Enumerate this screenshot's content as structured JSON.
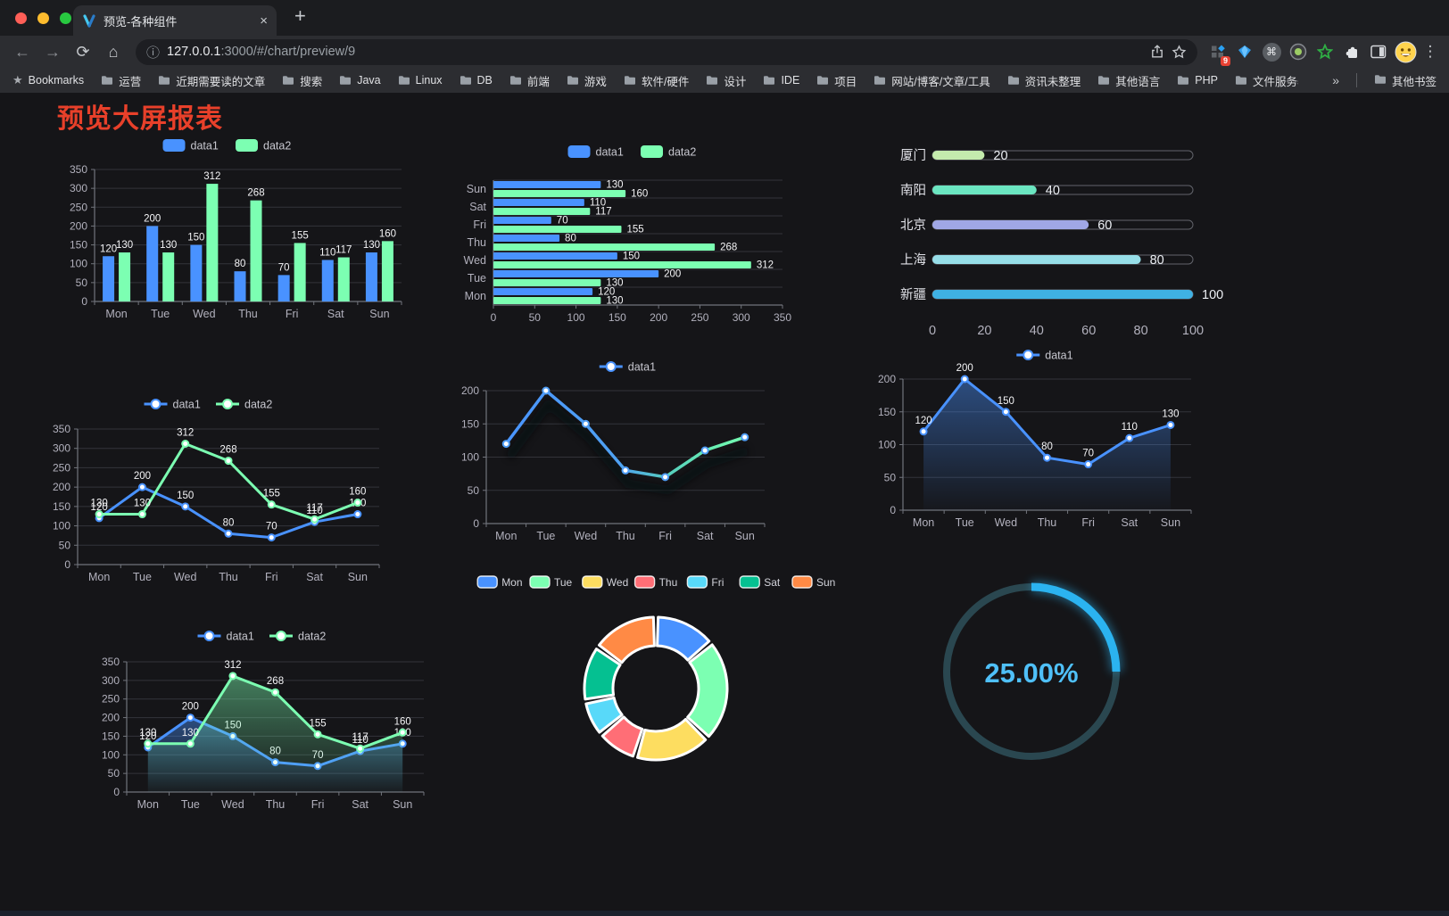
{
  "browser": {
    "traffic_lights": {
      "close": "#ff5f57",
      "minimize": "#febc2e",
      "zoom": "#28c840"
    },
    "tab": {
      "title": "预览-各种组件",
      "close_glyph": "×",
      "new_tab_glyph": "+"
    },
    "address": {
      "info_glyph": "ⓘ",
      "host": "127.0.0.1",
      "rest": ":3000/#/chart/preview/9"
    },
    "nav": {
      "back_glyph": "←",
      "forward_glyph": "→",
      "reload_glyph": "⟳",
      "home_glyph": "⌂"
    },
    "extension_badge": "9",
    "menu_glyph": "⋮",
    "command_glyph": "⌘",
    "bookmarks_bar": {
      "bookmarks_label": "Bookmarks",
      "star_glyph": "★",
      "folders": [
        "运营",
        "近期需要读的文章",
        "搜索",
        "Java",
        "Linux",
        "DB",
        "前端",
        "游戏",
        "软件/硬件",
        "设计",
        "IDE",
        "项目",
        "网站/博客/文章/工具",
        "资讯未整理",
        "其他语言",
        "PHP",
        "文件服务器"
      ],
      "overflow_glyph": "»",
      "other_bookmarks": "其他书签"
    }
  },
  "page": {
    "title": "预览大屏报表",
    "title_color": "#e8402a",
    "background": "#151518"
  },
  "theme": {
    "axis": "#71747c",
    "grid": "#33343a",
    "tick_text": "#b2b1bd",
    "value_label": "#f4f4f6",
    "legend_text": "#c8c8d0",
    "series_blue": "#4992ff",
    "series_green": "#7cffb2"
  },
  "chart_data": [
    {
      "id": "bar-vertical",
      "type": "bar",
      "legend": [
        "data1",
        "data2"
      ],
      "categories": [
        "Mon",
        "Tue",
        "Wed",
        "Thu",
        "Fri",
        "Sat",
        "Sun"
      ],
      "series": [
        {
          "name": "data1",
          "color": "#4992ff",
          "values": [
            120,
            200,
            150,
            80,
            70,
            110,
            130
          ]
        },
        {
          "name": "data2",
          "color": "#7cffb2",
          "values": [
            130,
            130,
            312,
            268,
            155,
            117,
            160
          ]
        }
      ],
      "ylim": [
        0,
        350
      ],
      "ytick_step": 50,
      "grid": true,
      "value_labels": true
    },
    {
      "id": "bar-horizontal",
      "type": "bar",
      "orientation": "horizontal",
      "legend": [
        "data1",
        "data2"
      ],
      "categories": [
        "Mon",
        "Tue",
        "Wed",
        "Thu",
        "Fri",
        "Sat",
        "Sun"
      ],
      "category_display_top_to_bottom": [
        "Sun",
        "Sat",
        "Fri",
        "Thu",
        "Wed",
        "Tue",
        "Mon"
      ],
      "series": [
        {
          "name": "data1",
          "color": "#4992ff",
          "values": [
            120,
            200,
            150,
            80,
            70,
            110,
            130
          ]
        },
        {
          "name": "data2",
          "color": "#7cffb2",
          "values": [
            130,
            130,
            312,
            268,
            155,
            117,
            160
          ]
        }
      ],
      "xlim": [
        0,
        350
      ],
      "xtick_step": 50,
      "value_labels": true
    },
    {
      "id": "progress-bars",
      "type": "bar",
      "orientation": "horizontal-progress",
      "xlim": [
        0,
        100
      ],
      "xticks": [
        0,
        20,
        40,
        60,
        80,
        100
      ],
      "items": [
        {
          "label": "厦门",
          "value": 20,
          "color": "#c4ebad"
        },
        {
          "label": "南阳",
          "value": 40,
          "color": "#6be6c1"
        },
        {
          "label": "北京",
          "value": 60,
          "color": "#a0a7e6"
        },
        {
          "label": "上海",
          "value": 80,
          "color": "#96dee8"
        },
        {
          "label": "新疆",
          "value": 100,
          "color": "#3fb1e3"
        }
      ]
    },
    {
      "id": "line-two-series",
      "type": "line",
      "legend": [
        "data1",
        "data2"
      ],
      "categories": [
        "Mon",
        "Tue",
        "Wed",
        "Thu",
        "Fri",
        "Sat",
        "Sun"
      ],
      "series": [
        {
          "name": "data1",
          "color": "#4992ff",
          "values": [
            120,
            200,
            150,
            80,
            70,
            110,
            130
          ]
        },
        {
          "name": "data2",
          "color": "#7cffb2",
          "values": [
            130,
            130,
            312,
            268,
            155,
            117,
            160
          ]
        }
      ],
      "ylim": [
        0,
        350
      ],
      "ytick_step": 50,
      "value_labels": true,
      "area": false
    },
    {
      "id": "line-gradient",
      "type": "line",
      "legend": [
        "data1"
      ],
      "categories": [
        "Mon",
        "Tue",
        "Wed",
        "Thu",
        "Fri",
        "Sat",
        "Sun"
      ],
      "series": [
        {
          "name": "data1",
          "color": "#4992ff",
          "color_gradient_end": "#7cffb2",
          "values": [
            120,
            200,
            150,
            80,
            70,
            110,
            130
          ]
        }
      ],
      "ylim": [
        0,
        200
      ],
      "ytick_step": 50,
      "value_labels": false,
      "area": false
    },
    {
      "id": "area-single",
      "type": "area",
      "legend": [
        "data1"
      ],
      "categories": [
        "Mon",
        "Tue",
        "Wed",
        "Thu",
        "Fri",
        "Sat",
        "Sun"
      ],
      "series": [
        {
          "name": "data1",
          "color": "#4992ff",
          "values": [
            120,
            200,
            150,
            80,
            70,
            110,
            130
          ]
        }
      ],
      "ylim": [
        0,
        200
      ],
      "ytick_step": 50,
      "value_labels": true,
      "area": true
    },
    {
      "id": "line-area-two",
      "type": "area",
      "legend": [
        "data1",
        "data2"
      ],
      "categories": [
        "Mon",
        "Tue",
        "Wed",
        "Thu",
        "Fri",
        "Sat",
        "Sun"
      ],
      "series": [
        {
          "name": "data1",
          "color": "#4992ff",
          "values": [
            120,
            200,
            150,
            80,
            70,
            110,
            130
          ]
        },
        {
          "name": "data2",
          "color": "#7cffb2",
          "values": [
            130,
            130,
            312,
            268,
            155,
            117,
            160
          ]
        }
      ],
      "ylim": [
        0,
        350
      ],
      "ytick_step": 50,
      "value_labels": true,
      "area": true
    },
    {
      "id": "donut",
      "type": "pie",
      "categories": [
        "Mon",
        "Tue",
        "Wed",
        "Thu",
        "Fri",
        "Sat",
        "Sun"
      ],
      "values": [
        120,
        200,
        150,
        80,
        70,
        110,
        130
      ],
      "colors": [
        "#4992ff",
        "#7cffb2",
        "#fddd60",
        "#ff6e76",
        "#58d9f9",
        "#05c091",
        "#ff8a45"
      ],
      "inner_radius_ratio": 0.6,
      "border_color": "#ffffff",
      "legend_position": "top"
    },
    {
      "id": "gauge",
      "type": "gauge",
      "percent": 25,
      "value_label": "25.00%",
      "bar_color": "#2bb3f0",
      "track_color": "#2a4750",
      "text_color": "#4fc0f8"
    }
  ]
}
